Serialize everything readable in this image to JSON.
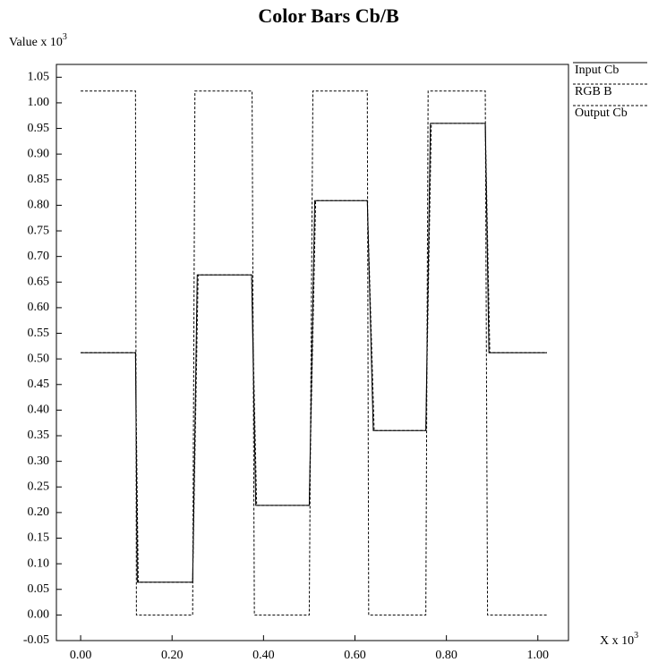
{
  "chart_data": {
    "type": "line",
    "title": "Color Bars Cb/B",
    "ylabel": "Value x 10",
    "ylabel_exponent": "3",
    "xlabel": "X x 10",
    "xlabel_exponent": "3",
    "xlim": [
      -0.053,
      1.067
    ],
    "ylim": [
      -0.05,
      1.075
    ],
    "xticks": [
      {
        "value": 0,
        "label": "0.00"
      },
      {
        "value": 0.2,
        "label": "0.20"
      },
      {
        "value": 0.4,
        "label": "0.40"
      },
      {
        "value": 0.6,
        "label": "0.60"
      },
      {
        "value": 0.8,
        "label": "0.80"
      },
      {
        "value": 1,
        "label": "1.00"
      }
    ],
    "yticks": [
      {
        "value": -0.05,
        "label": "-0.05"
      },
      {
        "value": 0,
        "label": "0.00"
      },
      {
        "value": 0.05,
        "label": "0.05"
      },
      {
        "value": 0.1,
        "label": "0.10"
      },
      {
        "value": 0.15,
        "label": "0.15"
      },
      {
        "value": 0.2,
        "label": "0.20"
      },
      {
        "value": 0.25,
        "label": "0.25"
      },
      {
        "value": 0.3,
        "label": "0.30"
      },
      {
        "value": 0.35,
        "label": "0.35"
      },
      {
        "value": 0.4,
        "label": "0.40"
      },
      {
        "value": 0.45,
        "label": "0.45"
      },
      {
        "value": 0.5,
        "label": "0.50"
      },
      {
        "value": 0.55,
        "label": "0.55"
      },
      {
        "value": 0.6,
        "label": "0.60"
      },
      {
        "value": 0.65,
        "label": "0.65"
      },
      {
        "value": 0.7,
        "label": "0.70"
      },
      {
        "value": 0.75,
        "label": "0.75"
      },
      {
        "value": 0.8,
        "label": "0.80"
      },
      {
        "value": 0.85,
        "label": "0.85"
      },
      {
        "value": 0.9,
        "label": "0.90"
      },
      {
        "value": 0.95,
        "label": "0.95"
      },
      {
        "value": 1,
        "label": "1.00"
      },
      {
        "value": 1.05,
        "label": "1.05"
      }
    ],
    "legend": "outside-right-top",
    "series": [
      {
        "name": "Input Cb",
        "color": "#000000",
        "style": "solid",
        "x": [
          0,
          0.12,
          0.124,
          0.245,
          0.255,
          0.374,
          0.383,
          0.5,
          0.512,
          0.627,
          0.64,
          0.755,
          0.765,
          0.885,
          0.893,
          1.02
        ],
        "values": [
          0.512,
          0.512,
          0.064,
          0.064,
          0.664,
          0.664,
          0.214,
          0.214,
          0.809,
          0.809,
          0.36,
          0.36,
          0.96,
          0.96,
          0.512,
          0.512
        ]
      },
      {
        "name": "RGB B",
        "color": "#000000",
        "style": "dashed",
        "x": [
          0,
          0.12,
          0.122,
          0.245,
          0.25,
          0.375,
          0.38,
          0.5,
          0.508,
          0.627,
          0.63,
          0.755,
          0.76,
          0.885,
          0.89,
          1.02
        ],
        "values": [
          1.023,
          1.023,
          0,
          0,
          1.023,
          1.023,
          0,
          0,
          1.023,
          1.023,
          0,
          0,
          1.023,
          1.023,
          0,
          0
        ]
      },
      {
        "name": "Output Cb",
        "color": "#000000",
        "style": "dashed",
        "x": [
          0,
          0.12,
          0.126,
          0.245,
          0.257,
          0.374,
          0.385,
          0.5,
          0.514,
          0.627,
          0.642,
          0.755,
          0.767,
          0.885,
          0.895,
          1.02
        ],
        "values": [
          0.512,
          0.512,
          0.064,
          0.064,
          0.664,
          0.664,
          0.214,
          0.214,
          0.809,
          0.809,
          0.36,
          0.36,
          0.96,
          0.96,
          0.512,
          0.512
        ]
      }
    ]
  }
}
